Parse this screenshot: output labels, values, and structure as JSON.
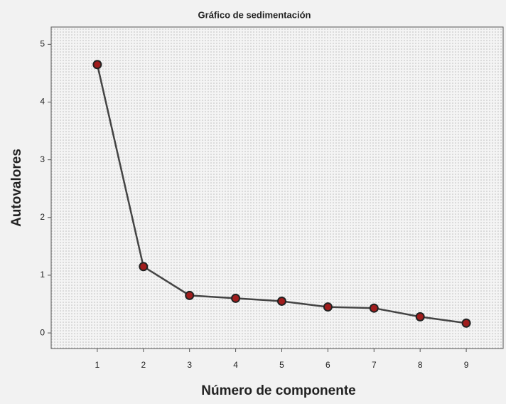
{
  "chart_data": {
    "type": "line",
    "title": "Gráfico de sedimentación",
    "x_label": "Número de componente",
    "y_label": "Autovalores",
    "x": [
      1,
      2,
      3,
      4,
      5,
      6,
      7,
      8,
      9
    ],
    "series": [
      {
        "name": "Autovalores",
        "color": "#444444",
        "marker_color": "#a01c1c",
        "values": [
          4.65,
          1.15,
          0.65,
          0.6,
          0.55,
          0.45,
          0.43,
          0.28,
          0.17
        ]
      }
    ],
    "xlim": [
      0,
      9.8
    ],
    "xticks": [
      1,
      2,
      3,
      4,
      5,
      6,
      7,
      8,
      9
    ],
    "ylim": [
      -0.27,
      5.3
    ],
    "yticks": [
      0,
      1,
      2,
      3,
      4,
      5
    ]
  }
}
